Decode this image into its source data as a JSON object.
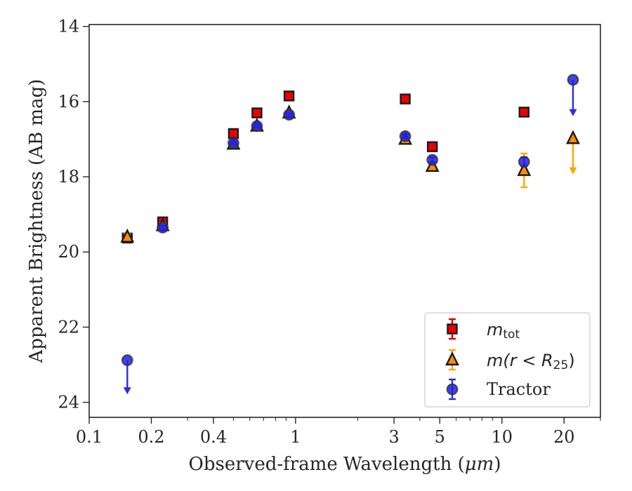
{
  "chart_data": {
    "type": "scatter",
    "xlabel_prefix": "Observed-frame Wavelength (",
    "xlabel_unit": "μm",
    "xlabel_suffix": ")",
    "ylabel": "Apparent Brightness (AB mag)",
    "xscale": "log",
    "xlim": [
      0.1,
      30
    ],
    "ylim": [
      24.4,
      13.95
    ],
    "y_inverted": true,
    "grid": false,
    "legend_position": "lower-right",
    "x_ticks": [
      {
        "value": 0.1,
        "label": "0.1"
      },
      {
        "value": 0.2,
        "label": "0.2"
      },
      {
        "value": 0.4,
        "label": "0.4"
      },
      {
        "value": 1,
        "label": "1"
      },
      {
        "value": 3,
        "label": "3"
      },
      {
        "value": 5,
        "label": "5"
      },
      {
        "value": 10,
        "label": "10"
      },
      {
        "value": 20,
        "label": "20"
      }
    ],
    "y_ticks": [
      {
        "value": 14,
        "label": "14"
      },
      {
        "value": 16,
        "label": "16"
      },
      {
        "value": 18,
        "label": "18"
      },
      {
        "value": 20,
        "label": "20"
      },
      {
        "value": 22,
        "label": "22"
      },
      {
        "value": 24,
        "label": "24"
      }
    ],
    "series": [
      {
        "legend_main": "m",
        "legend_sub": "tot",
        "legend_rest": "",
        "marker": "square",
        "fill": "#ee0000",
        "error_color": "#dd0000",
        "points": [
          {
            "x": 0.153,
            "y": 19.63,
            "err": 0.08
          },
          {
            "x": 0.227,
            "y": 19.2,
            "err": 0.07
          },
          {
            "x": 0.5,
            "y": 16.85,
            "err": 0.04
          },
          {
            "x": 0.65,
            "y": 16.3,
            "err": 0.04
          },
          {
            "x": 0.93,
            "y": 15.85,
            "err": 0.04
          },
          {
            "x": 3.4,
            "y": 15.93,
            "err": 0.05
          },
          {
            "x": 4.6,
            "y": 17.2,
            "err": 0.06
          },
          {
            "x": 12.8,
            "y": 16.28,
            "err": 0.06
          }
        ]
      },
      {
        "legend_main": "m",
        "legend_sub": "25",
        "legend_rest": "(r < R",
        "marker": "triangle",
        "fill": "#ff8c00",
        "error_color": "#ffa500",
        "points": [
          {
            "x": 0.153,
            "y": 19.6,
            "err": 0.08
          },
          {
            "x": 0.227,
            "y": 19.3,
            "err": 0.07
          },
          {
            "x": 0.5,
            "y": 17.13,
            "err": 0.04
          },
          {
            "x": 0.65,
            "y": 16.65,
            "err": 0.04
          },
          {
            "x": 0.93,
            "y": 16.3,
            "err": 0.04
          },
          {
            "x": 3.4,
            "y": 17.0,
            "err": 0.05
          },
          {
            "x": 4.6,
            "y": 17.72,
            "err": 0.06
          },
          {
            "x": 12.8,
            "y": 17.83,
            "err": 0.45
          },
          {
            "x": 22.1,
            "y": 16.98,
            "upper_limit": true,
            "arrow_to": 17.9
          }
        ]
      },
      {
        "legend_main": "Tractor",
        "legend_sub": "",
        "legend_rest": "",
        "marker": "circle",
        "fill": "#2020ee",
        "error_color": "#2a2ae8",
        "points": [
          {
            "x": 0.153,
            "y": 22.88,
            "upper_limit": true,
            "arrow_to": 23.75
          },
          {
            "x": 0.227,
            "y": 19.35,
            "err": 0.05
          },
          {
            "x": 0.5,
            "y": 17.1,
            "err": 0.04
          },
          {
            "x": 0.65,
            "y": 16.65,
            "err": 0.04
          },
          {
            "x": 0.93,
            "y": 16.35,
            "err": 0.04
          },
          {
            "x": 3.4,
            "y": 16.92,
            "err": 0.05
          },
          {
            "x": 4.6,
            "y": 17.55,
            "err": 0.06
          },
          {
            "x": 12.8,
            "y": 17.6,
            "err": 0.12
          },
          {
            "x": 22.1,
            "y": 15.42,
            "upper_limit": true,
            "arrow_to": 16.35
          }
        ]
      }
    ]
  }
}
